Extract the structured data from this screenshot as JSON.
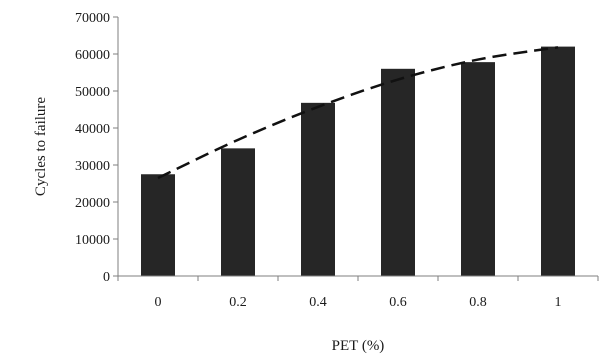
{
  "chart_data": {
    "type": "bar",
    "title": "",
    "xlabel": "PET (%)",
    "ylabel": "Cycles to failure",
    "categories": [
      "0",
      "0.2",
      "0.4",
      "0.6",
      "0.8",
      "1"
    ],
    "values": [
      27500,
      34500,
      46800,
      56000,
      57800,
      62000
    ],
    "ylim": [
      0,
      70000
    ],
    "yticks": [
      "0",
      "10000",
      "20000",
      "30000",
      "40000",
      "50000",
      "60000",
      "70000"
    ],
    "trendline": {
      "style": "dashed",
      "type": "polynomial",
      "values": [
        26500,
        36800,
        45700,
        53100,
        58500,
        61800
      ]
    },
    "grid": false,
    "legend": "none",
    "colors": {
      "bar": "#262626",
      "trend": "#111111",
      "axis": "#7f7f7f"
    }
  }
}
